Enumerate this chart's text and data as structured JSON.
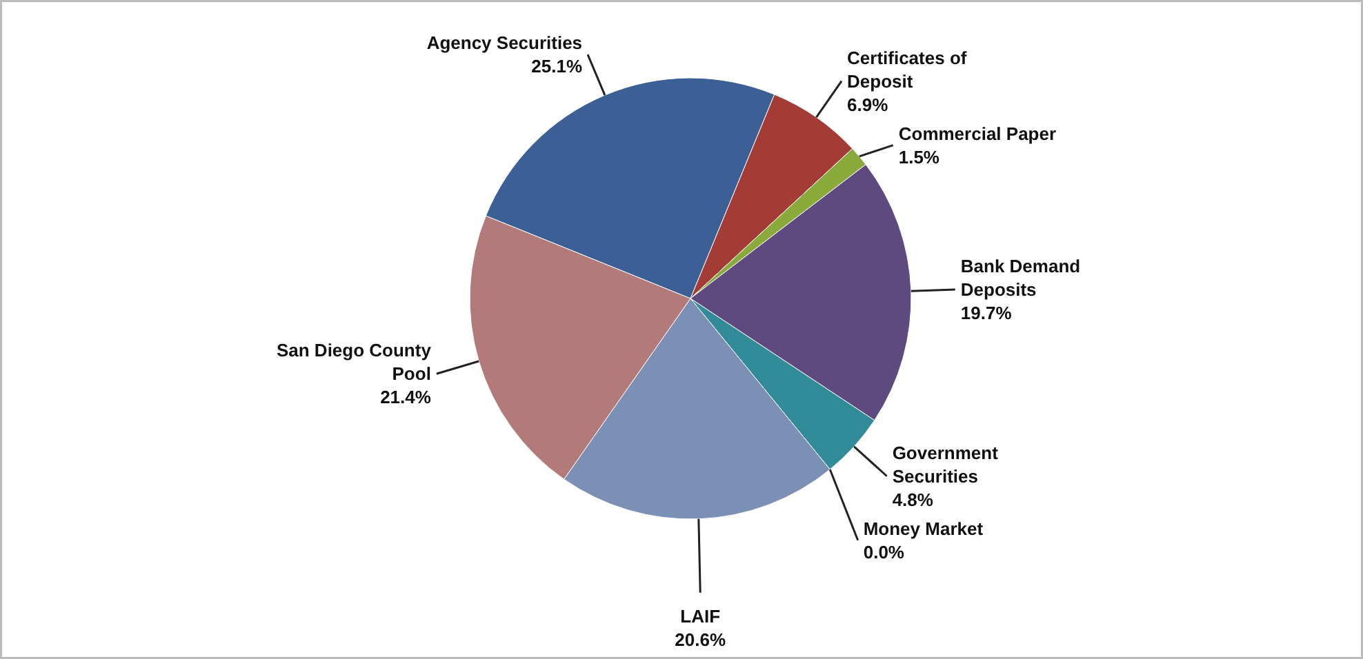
{
  "chart_data": {
    "type": "pie",
    "categories": [
      "Agency Securities",
      "Certificates of Deposit",
      "Commercial Paper",
      "Bank Demand Deposits",
      "Government Securities",
      "Money Market",
      "LAIF",
      "San Diego County Pool"
    ],
    "values": [
      25.1,
      6.9,
      1.5,
      19.7,
      4.8,
      0.0,
      20.6,
      21.4
    ],
    "value_labels": [
      "25.1%",
      "6.9%",
      "1.5%",
      "19.7%",
      "4.8%",
      "0.0%",
      "20.6%",
      "21.4%"
    ],
    "colors": [
      "#3c5f96",
      "#a33b36",
      "#8aaa3c",
      "#5f4a80",
      "#318b99",
      "#4f81bd",
      "#7c8fb5",
      "#b27a78"
    ]
  }
}
